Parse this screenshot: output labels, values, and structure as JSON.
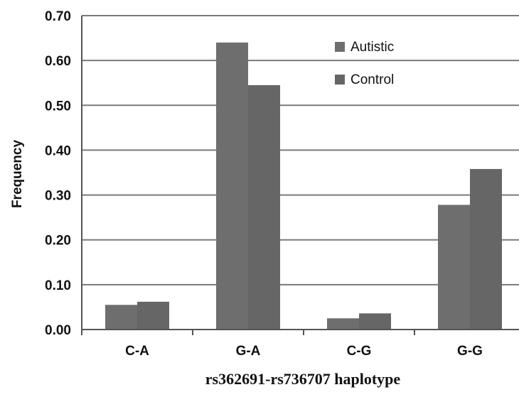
{
  "chart_data": {
    "type": "bar",
    "categories": [
      "C-A",
      "G-A",
      "C-G",
      "G-G"
    ],
    "series": [
      {
        "name": "Autistic",
        "values": [
          0.055,
          0.64,
          0.025,
          0.278
        ],
        "color": "#6e6e6e"
      },
      {
        "name": "Control",
        "values": [
          0.062,
          0.545,
          0.036,
          0.358
        ],
        "color": "#666666"
      }
    ],
    "xlabel": "rs362691-rs736707 haplotype",
    "ylabel": "Frequency",
    "ylim": [
      0,
      0.7
    ],
    "yticks": [
      "0.00",
      "0.10",
      "0.20",
      "0.30",
      "0.40",
      "0.50",
      "0.60",
      "0.70"
    ],
    "grid": true,
    "legend_position": "top-right"
  }
}
